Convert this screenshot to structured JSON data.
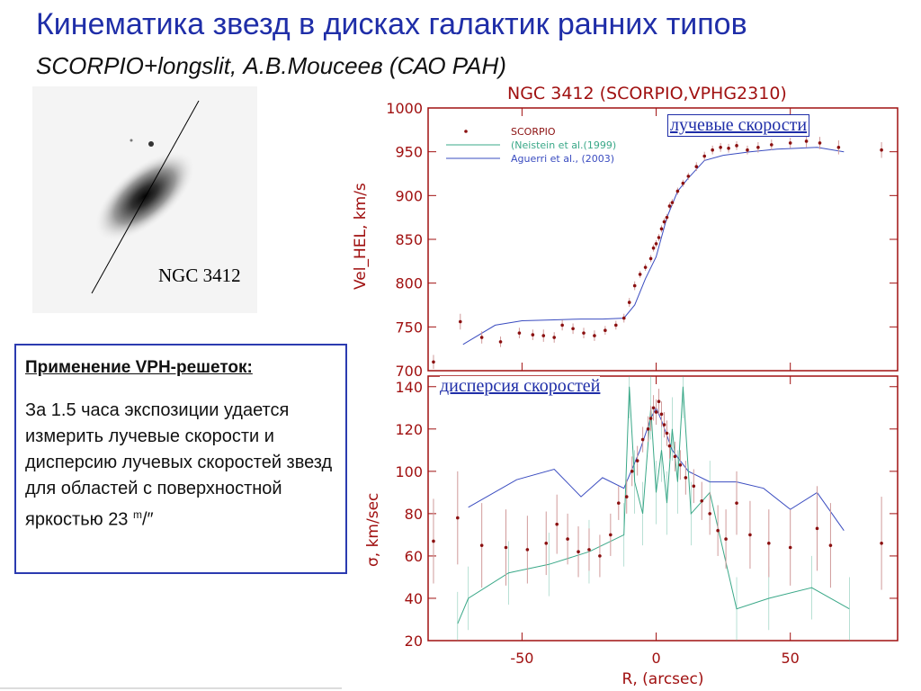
{
  "slide": {
    "title": "Кинематика звезд в дисках галактик ранних типов",
    "subtitle": "SCORPIO+longslit, А.В.Моисеев (САО РАН)",
    "galaxy_label": "NGC 3412",
    "info_heading": "Применение  VPH-решеток:",
    "info_text_main": "За 1.5 часа экспозиции удается измерить лучевые скорости и дисперсию лучевых скоростей звезд для областей с поверхностной яркостью 23 ",
    "info_text_sup": "m",
    "info_text_end": "/″",
    "annotation_velocity": "лучевые скорости",
    "annotation_dispersion": "дисперсия  скоростей"
  },
  "colors": {
    "frame": "#a01010",
    "points": "#8b1010",
    "errbars": "#d09a9a",
    "blue": "#3a4cc0",
    "green": "#3aa888",
    "title": "#1f2ea8"
  },
  "chart_data": [
    {
      "type": "scatter",
      "title": "NGC 3412 (SCORPIO,VPHG2310)",
      "ylabel": "Vel_HEL, km/s",
      "ylim": [
        700,
        1000
      ],
      "xlim": [
        -85,
        90
      ],
      "yticks": [
        700,
        750,
        800,
        850,
        900,
        950,
        1000
      ],
      "legend": [
        "SCORPIO",
        "(Neistein et al.(1999)",
        "Aguerri et al., (2003)"
      ],
      "legend_position": "top-left",
      "series": [
        {
          "name": "SCORPIO",
          "style": "points-errorbars",
          "x": [
            -83,
            -73,
            -65,
            -58,
            -51,
            -46,
            -42,
            -38,
            -35,
            -31,
            -27,
            -23,
            -19,
            -15,
            -12,
            -10,
            -8,
            -6,
            -4,
            -2,
            -1,
            0,
            1,
            2,
            3,
            4,
            5,
            6,
            8,
            10,
            12,
            15,
            18,
            21,
            24,
            27,
            30,
            34,
            38,
            43,
            50,
            56,
            61,
            68,
            84
          ],
          "y": [
            710,
            756,
            738,
            733,
            743,
            741,
            740,
            738,
            752,
            748,
            743,
            740,
            746,
            752,
            760,
            778,
            797,
            810,
            818,
            828,
            840,
            845,
            852,
            862,
            870,
            875,
            888,
            892,
            905,
            914,
            922,
            933,
            945,
            952,
            955,
            954,
            957,
            952,
            955,
            958,
            960,
            962,
            960,
            955,
            952
          ],
          "err": [
            8,
            9,
            7,
            6,
            6,
            6,
            7,
            6,
            6,
            6,
            6,
            6,
            5,
            5,
            5,
            5,
            5,
            4,
            4,
            4,
            4,
            4,
            4,
            4,
            4,
            4,
            4,
            4,
            4,
            4,
            4,
            5,
            5,
            5,
            5,
            5,
            5,
            5,
            6,
            6,
            6,
            7,
            7,
            8,
            9
          ]
        },
        {
          "name": "(Neistein et al.(1999)",
          "style": "line-green",
          "x": [
            -72,
            -72
          ],
          "y": [
            705,
            705
          ]
        },
        {
          "name": "Aguerri et al., (2003)",
          "style": "line-blue",
          "x": [
            -72,
            -60,
            -50,
            -38,
            -28,
            -20,
            -12,
            -8,
            -4,
            0,
            4,
            8,
            12,
            18,
            25,
            35,
            45,
            60,
            70
          ],
          "y": [
            730,
            752,
            757,
            758,
            759,
            759,
            760,
            775,
            805,
            830,
            875,
            905,
            920,
            940,
            946,
            950,
            953,
            955,
            950
          ]
        }
      ]
    },
    {
      "type": "scatter",
      "ylabel": "σ, km/sec",
      "xlabel": "R, (arcsec)",
      "ylim": [
        20,
        145
      ],
      "xlim": [
        -85,
        90
      ],
      "yticks": [
        20,
        40,
        60,
        80,
        100,
        120,
        140
      ],
      "xticks": [
        -50,
        0,
        50
      ],
      "series": [
        {
          "name": "SCORPIO",
          "style": "points-errorbars",
          "x": [
            -83,
            -74,
            -65,
            -56,
            -48,
            -41,
            -37,
            -33,
            -29,
            -25,
            -21,
            -17,
            -14,
            -11,
            -9,
            -7,
            -5,
            -3,
            -2,
            -1,
            0,
            1,
            2,
            3,
            4,
            5,
            7,
            9,
            11,
            14,
            17,
            20,
            23,
            26,
            30,
            35,
            42,
            50,
            60,
            65,
            84
          ],
          "y": [
            67,
            78,
            65,
            64,
            63,
            66,
            75,
            68,
            62,
            63,
            60,
            70,
            85,
            88,
            100,
            105,
            115,
            120,
            125,
            130,
            128,
            133,
            127,
            122,
            118,
            112,
            107,
            103,
            97,
            93,
            86,
            80,
            72,
            68,
            85,
            70,
            66,
            64,
            73,
            65,
            66
          ],
          "err": [
            20,
            22,
            20,
            18,
            16,
            15,
            14,
            12,
            12,
            10,
            10,
            10,
            8,
            8,
            7,
            7,
            6,
            6,
            6,
            6,
            6,
            6,
            6,
            6,
            6,
            6,
            7,
            7,
            8,
            8,
            9,
            10,
            12,
            14,
            15,
            16,
            16,
            18,
            20,
            20,
            22
          ]
        },
        {
          "name": "Aguerri et al., (2003)",
          "style": "line-blue",
          "x": [
            -70,
            -52,
            -38,
            -28,
            -20,
            -12,
            -6,
            -2,
            0,
            2,
            6,
            12,
            20,
            30,
            40,
            50,
            60,
            70
          ],
          "y": [
            83,
            96,
            101,
            88,
            97,
            92,
            110,
            125,
            130,
            124,
            110,
            100,
            95,
            95,
            92,
            82,
            90,
            72
          ]
        },
        {
          "name": "(Neistein et al.(1999)",
          "style": "line-green",
          "x": [
            -74,
            -70,
            -55,
            -40,
            -25,
            -12,
            -10,
            -8,
            -5,
            -2,
            0,
            2,
            4,
            6,
            8,
            10,
            13,
            20,
            30,
            42,
            58,
            72
          ],
          "y": [
            28,
            40,
            52,
            56,
            62,
            70,
            140,
            95,
            80,
            130,
            90,
            110,
            85,
            120,
            95,
            140,
            80,
            90,
            35,
            40,
            45,
            35
          ]
        }
      ]
    }
  ]
}
